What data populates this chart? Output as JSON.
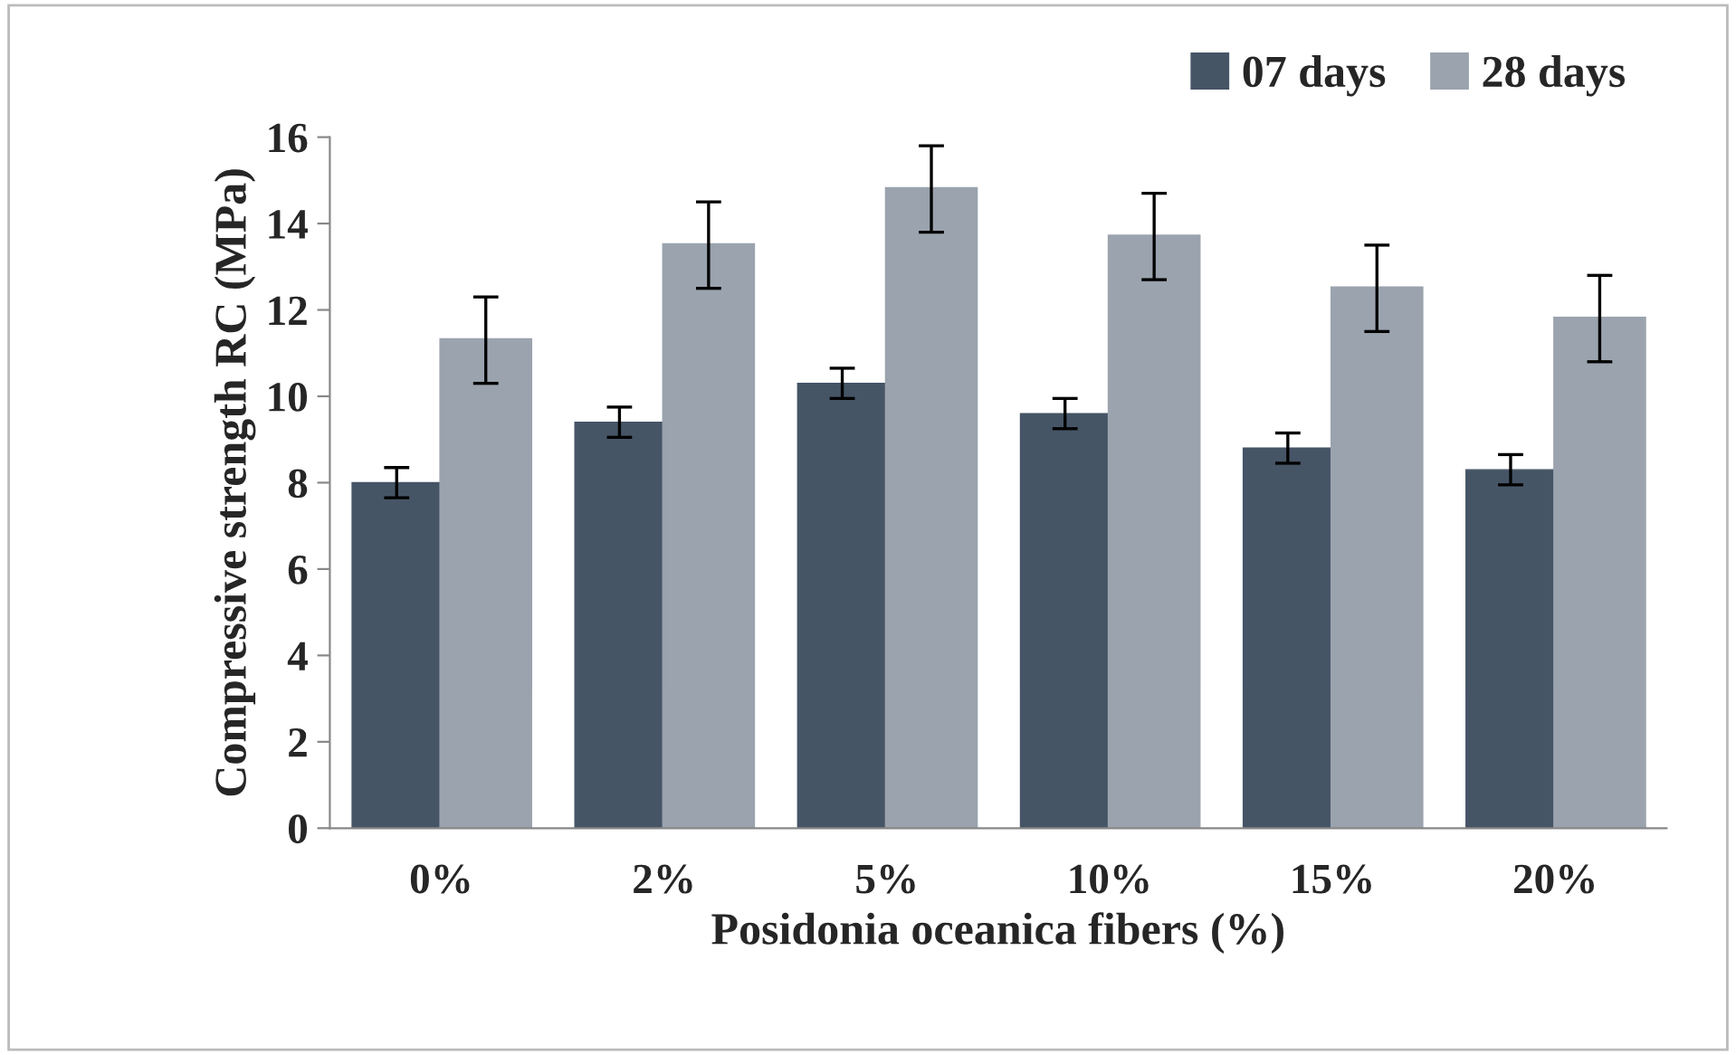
{
  "chart_data": {
    "type": "bar",
    "ylabel": "Compressive strength RC (MPa)",
    "xlabel": "Posidonia oceanica fibers (%)",
    "categories": [
      "0%",
      "2%",
      "5%",
      "10%",
      "15%",
      "20%"
    ],
    "series": [
      {
        "name": "07 days",
        "color": "#465566",
        "values": [
          8.0,
          9.4,
          10.3,
          9.6,
          8.8,
          8.3
        ],
        "errors": [
          0.35,
          0.35,
          0.35,
          0.35,
          0.35,
          0.35
        ]
      },
      {
        "name": "28 days",
        "color": "#9aa3ae",
        "values": [
          11.3,
          13.5,
          14.8,
          13.7,
          12.5,
          11.8
        ],
        "errors": [
          1.0,
          1.0,
          1.0,
          1.0,
          1.0,
          1.0
        ]
      }
    ],
    "ylim": [
      0,
      16
    ],
    "yticks": [
      0,
      2,
      4,
      6,
      8,
      10,
      12,
      14,
      16
    ],
    "grid": false,
    "legend": "top right"
  }
}
